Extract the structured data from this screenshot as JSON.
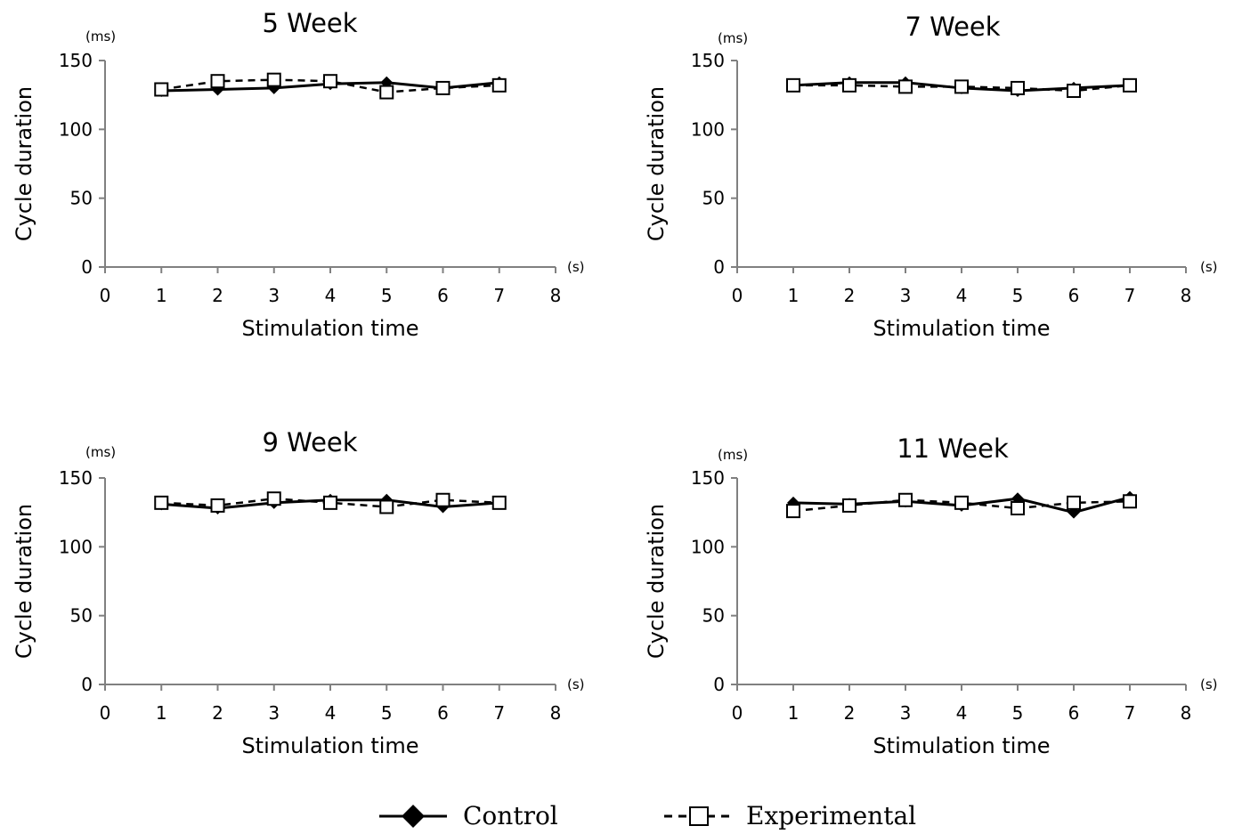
{
  "chart_data": [
    {
      "type": "line",
      "title": "5 Week",
      "xlabel": "Stimulation time",
      "ylabel": "Cycle duration",
      "x_unit": "(s)",
      "y_unit": "(ms)",
      "x": [
        1,
        2,
        3,
        4,
        5,
        6,
        7
      ],
      "xlim": [
        0,
        8
      ],
      "ylim": [
        0,
        150
      ],
      "xticks": [
        0,
        1,
        2,
        3,
        4,
        5,
        6,
        7,
        8
      ],
      "yticks": [
        0,
        50,
        100,
        150
      ],
      "grid": false,
      "series": [
        {
          "name": "Control",
          "values": [
            128,
            129,
            130,
            133,
            134,
            130,
            134
          ]
        },
        {
          "name": "Experimental",
          "values": [
            129,
            135,
            136,
            135,
            127,
            130,
            132
          ]
        }
      ]
    },
    {
      "type": "line",
      "title": "7 Week",
      "xlabel": "Stimulation time",
      "ylabel": "Cycle duration",
      "x_unit": "(s)",
      "y_unit": "(ms)",
      "x": [
        1,
        2,
        3,
        4,
        5,
        6,
        7
      ],
      "xlim": [
        0,
        8
      ],
      "ylim": [
        0,
        150
      ],
      "xticks": [
        0,
        1,
        2,
        3,
        4,
        5,
        6,
        7,
        8
      ],
      "yticks": [
        0,
        50,
        100,
        150
      ],
      "grid": false,
      "series": [
        {
          "name": "Control",
          "values": [
            132,
            134,
            134,
            130,
            128,
            130,
            132
          ]
        },
        {
          "name": "Experimental",
          "values": [
            132,
            132,
            131,
            131,
            130,
            128,
            132
          ]
        }
      ]
    },
    {
      "type": "line",
      "title": "9 Week",
      "xlabel": "Stimulation time",
      "ylabel": "Cycle duration",
      "x_unit": "(s)",
      "y_unit": "(ms)",
      "x": [
        1,
        2,
        3,
        4,
        5,
        6,
        7
      ],
      "xlim": [
        0,
        8
      ],
      "ylim": [
        0,
        150
      ],
      "xticks": [
        0,
        1,
        2,
        3,
        4,
        5,
        6,
        7,
        8
      ],
      "yticks": [
        0,
        50,
        100,
        150
      ],
      "grid": false,
      "series": [
        {
          "name": "Control",
          "values": [
            131,
            128,
            132,
            134,
            134,
            129,
            132
          ]
        },
        {
          "name": "Experimental",
          "values": [
            132,
            130,
            135,
            132,
            129,
            134,
            132
          ]
        }
      ]
    },
    {
      "type": "line",
      "title": "11 Week",
      "xlabel": "Stimulation time",
      "ylabel": "Cycle duration",
      "x_unit": "(s)",
      "y_unit": "(ms)",
      "x": [
        1,
        2,
        3,
        4,
        5,
        6,
        7
      ],
      "xlim": [
        0,
        8
      ],
      "ylim": [
        0,
        150
      ],
      "xticks": [
        0,
        1,
        2,
        3,
        4,
        5,
        6,
        7,
        8
      ],
      "yticks": [
        0,
        50,
        100,
        150
      ],
      "grid": false,
      "series": [
        {
          "name": "Control",
          "values": [
            132,
            131,
            133,
            130,
            135,
            125,
            136
          ]
        },
        {
          "name": "Experimental",
          "values": [
            126,
            130,
            134,
            132,
            128,
            132,
            133
          ]
        }
      ]
    }
  ],
  "legend": {
    "placement": "bottom-center",
    "items": [
      {
        "label": "Control",
        "marker": "filled-diamond-icon",
        "line": "solid"
      },
      {
        "label": "Experimental",
        "marker": "open-square-icon",
        "line": "dashed"
      }
    ]
  },
  "colors": {
    "ink": "#000000",
    "background": "#ffffff"
  }
}
